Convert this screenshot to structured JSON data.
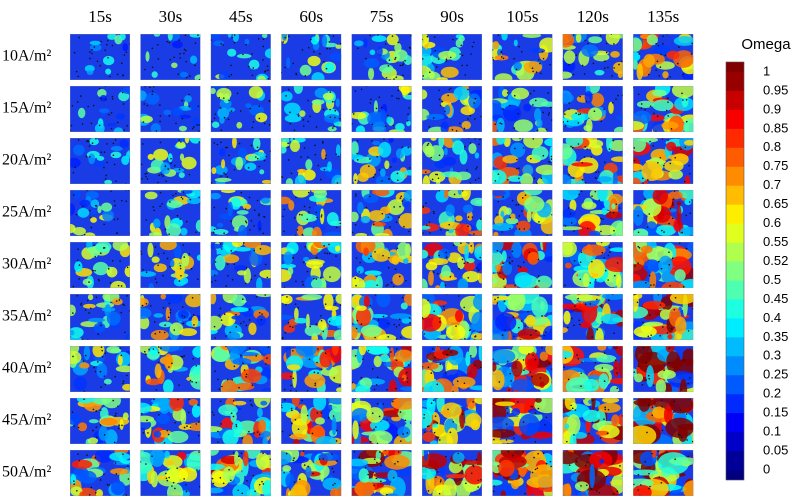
{
  "figure": {
    "columns": [
      "15s",
      "30s",
      "45s",
      "60s",
      "75s",
      "90s",
      "105s",
      "120s",
      "135s"
    ],
    "rows": [
      "10A/m²",
      "15A/m²",
      "20A/m²",
      "25A/m²",
      "30A/m²",
      "35A/m²",
      "40A/m²",
      "45A/m²",
      "50A/m²"
    ],
    "colorbar": {
      "title": "Omega",
      "ticks": [
        "1",
        "0.95",
        "0.9",
        "0.85",
        "0.8",
        "0.75",
        "0.7",
        "0.65",
        "0.6",
        "0.55",
        "0.52",
        "0.5",
        "0.45",
        "0.4",
        "0.35",
        "0.3",
        "0.25",
        "0.2",
        "0.15",
        "0.1",
        "0.05",
        "0"
      ]
    }
  }
}
